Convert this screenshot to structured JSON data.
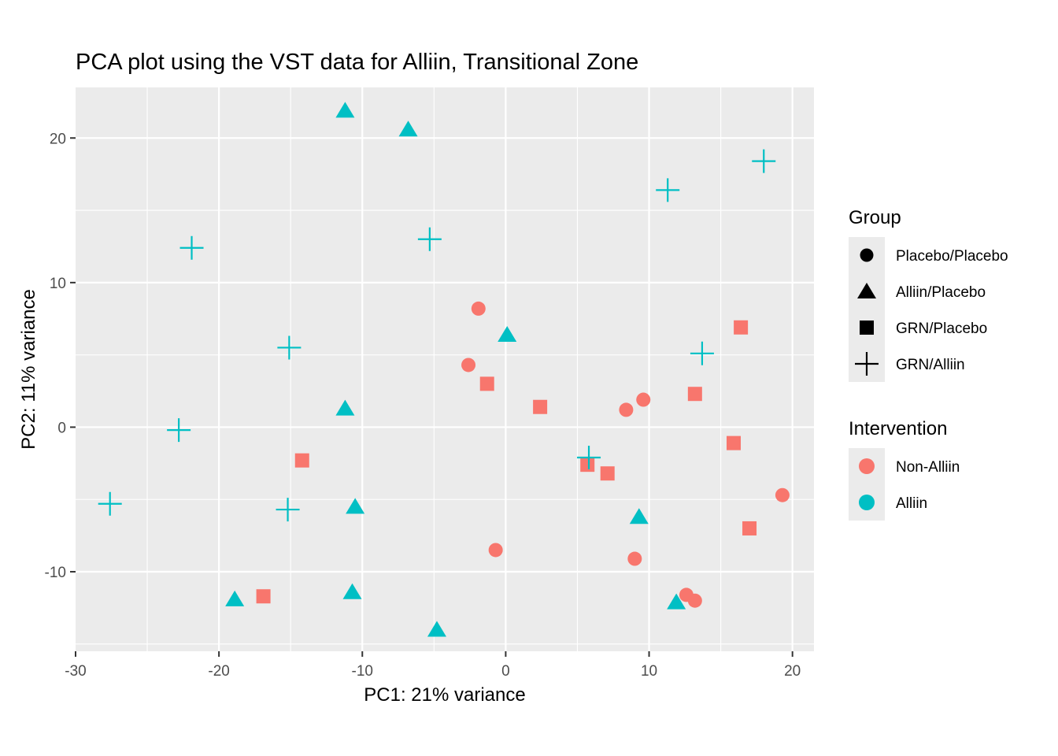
{
  "chart_data": {
    "type": "scatter",
    "title": "PCA plot using the VST data for Alliin, Transitional Zone",
    "xlabel": "PC1: 21% variance",
    "ylabel": "PC2: 11% variance",
    "xlim": [
      -30,
      21.5
    ],
    "ylim": [
      -15.5,
      23.5
    ],
    "x_ticks": [
      -30,
      -20,
      -10,
      0,
      10,
      20
    ],
    "y_ticks": [
      -10,
      0,
      10,
      20
    ],
    "x_tick_labels": [
      "-30",
      "-20",
      "-10",
      "0",
      "10",
      "20"
    ],
    "y_tick_labels": [
      "-10",
      "0",
      "10",
      "20"
    ],
    "grid": true,
    "colors": {
      "Non-Alliin": "#f8766d",
      "Alliin": "#00bfc4"
    },
    "legends": [
      {
        "title": "Group",
        "placement": "right",
        "entries": [
          {
            "label": "Placebo/Placebo",
            "shape": "circle"
          },
          {
            "label": "Alliin/Placebo",
            "shape": "triangle"
          },
          {
            "label": "GRN/Placebo",
            "shape": "square"
          },
          {
            "label": "GRN/Alliin",
            "shape": "plus"
          }
        ]
      },
      {
        "title": "Intervention",
        "placement": "right",
        "entries": [
          {
            "label": "Non-Alliin",
            "color": "#f8766d"
          },
          {
            "label": "Alliin",
            "color": "#00bfc4"
          }
        ]
      }
    ],
    "points": [
      {
        "x": -1.9,
        "y": 8.2,
        "group": "Placebo/Placebo",
        "intervention": "Non-Alliin"
      },
      {
        "x": -2.6,
        "y": 4.3,
        "group": "Placebo/Placebo",
        "intervention": "Non-Alliin"
      },
      {
        "x": 9.6,
        "y": 1.9,
        "group": "Placebo/Placebo",
        "intervention": "Non-Alliin"
      },
      {
        "x": 8.4,
        "y": 1.2,
        "group": "Placebo/Placebo",
        "intervention": "Non-Alliin"
      },
      {
        "x": 19.3,
        "y": -4.7,
        "group": "Placebo/Placebo",
        "intervention": "Non-Alliin"
      },
      {
        "x": -0.7,
        "y": -8.5,
        "group": "Placebo/Placebo",
        "intervention": "Non-Alliin"
      },
      {
        "x": 9.0,
        "y": -9.1,
        "group": "Placebo/Placebo",
        "intervention": "Non-Alliin"
      },
      {
        "x": 12.6,
        "y": -11.6,
        "group": "Placebo/Placebo",
        "intervention": "Non-Alliin"
      },
      {
        "x": 13.2,
        "y": -12.0,
        "group": "Placebo/Placebo",
        "intervention": "Non-Alliin"
      },
      {
        "x": 16.4,
        "y": 6.9,
        "group": "GRN/Placebo",
        "intervention": "Non-Alliin"
      },
      {
        "x": -1.3,
        "y": 3.0,
        "group": "GRN/Placebo",
        "intervention": "Non-Alliin"
      },
      {
        "x": 2.4,
        "y": 1.4,
        "group": "GRN/Placebo",
        "intervention": "Non-Alliin"
      },
      {
        "x": 13.2,
        "y": 2.3,
        "group": "GRN/Placebo",
        "intervention": "Non-Alliin"
      },
      {
        "x": 15.9,
        "y": -1.1,
        "group": "GRN/Placebo",
        "intervention": "Non-Alliin"
      },
      {
        "x": -14.2,
        "y": -2.3,
        "group": "GRN/Placebo",
        "intervention": "Non-Alliin"
      },
      {
        "x": 5.7,
        "y": -2.6,
        "group": "GRN/Placebo",
        "intervention": "Non-Alliin"
      },
      {
        "x": 7.1,
        "y": -3.2,
        "group": "GRN/Placebo",
        "intervention": "Non-Alliin"
      },
      {
        "x": 17.0,
        "y": -7.0,
        "group": "GRN/Placebo",
        "intervention": "Non-Alliin"
      },
      {
        "x": -16.9,
        "y": -11.7,
        "group": "GRN/Placebo",
        "intervention": "Non-Alliin"
      },
      {
        "x": -11.2,
        "y": 21.9,
        "group": "Alliin/Placebo",
        "intervention": "Alliin"
      },
      {
        "x": -6.8,
        "y": 20.6,
        "group": "Alliin/Placebo",
        "intervention": "Alliin"
      },
      {
        "x": 0.1,
        "y": 6.4,
        "group": "Alliin/Placebo",
        "intervention": "Alliin"
      },
      {
        "x": -11.2,
        "y": 1.3,
        "group": "Alliin/Placebo",
        "intervention": "Alliin"
      },
      {
        "x": -10.5,
        "y": -5.5,
        "group": "Alliin/Placebo",
        "intervention": "Alliin"
      },
      {
        "x": 9.3,
        "y": -6.2,
        "group": "Alliin/Placebo",
        "intervention": "Alliin"
      },
      {
        "x": -10.7,
        "y": -11.4,
        "group": "Alliin/Placebo",
        "intervention": "Alliin"
      },
      {
        "x": -18.9,
        "y": -11.9,
        "group": "Alliin/Placebo",
        "intervention": "Alliin"
      },
      {
        "x": 11.9,
        "y": -12.1,
        "group": "Alliin/Placebo",
        "intervention": "Alliin"
      },
      {
        "x": -4.8,
        "y": -14.0,
        "group": "Alliin/Placebo",
        "intervention": "Alliin"
      },
      {
        "x": 18.0,
        "y": 18.4,
        "group": "GRN/Alliin",
        "intervention": "Alliin"
      },
      {
        "x": 11.3,
        "y": 16.4,
        "group": "GRN/Alliin",
        "intervention": "Alliin"
      },
      {
        "x": -5.3,
        "y": 13.0,
        "group": "GRN/Alliin",
        "intervention": "Alliin"
      },
      {
        "x": -21.9,
        "y": 12.4,
        "group": "GRN/Alliin",
        "intervention": "Alliin"
      },
      {
        "x": -15.1,
        "y": 5.5,
        "group": "GRN/Alliin",
        "intervention": "Alliin"
      },
      {
        "x": 13.7,
        "y": 5.1,
        "group": "GRN/Alliin",
        "intervention": "Alliin"
      },
      {
        "x": -22.8,
        "y": -0.2,
        "group": "GRN/Alliin",
        "intervention": "Alliin"
      },
      {
        "x": 5.8,
        "y": -2.1,
        "group": "GRN/Alliin",
        "intervention": "Alliin"
      },
      {
        "x": -27.6,
        "y": -5.3,
        "group": "GRN/Alliin",
        "intervention": "Alliin"
      },
      {
        "x": -15.2,
        "y": -5.7,
        "group": "GRN/Alliin",
        "intervention": "Alliin"
      }
    ]
  }
}
